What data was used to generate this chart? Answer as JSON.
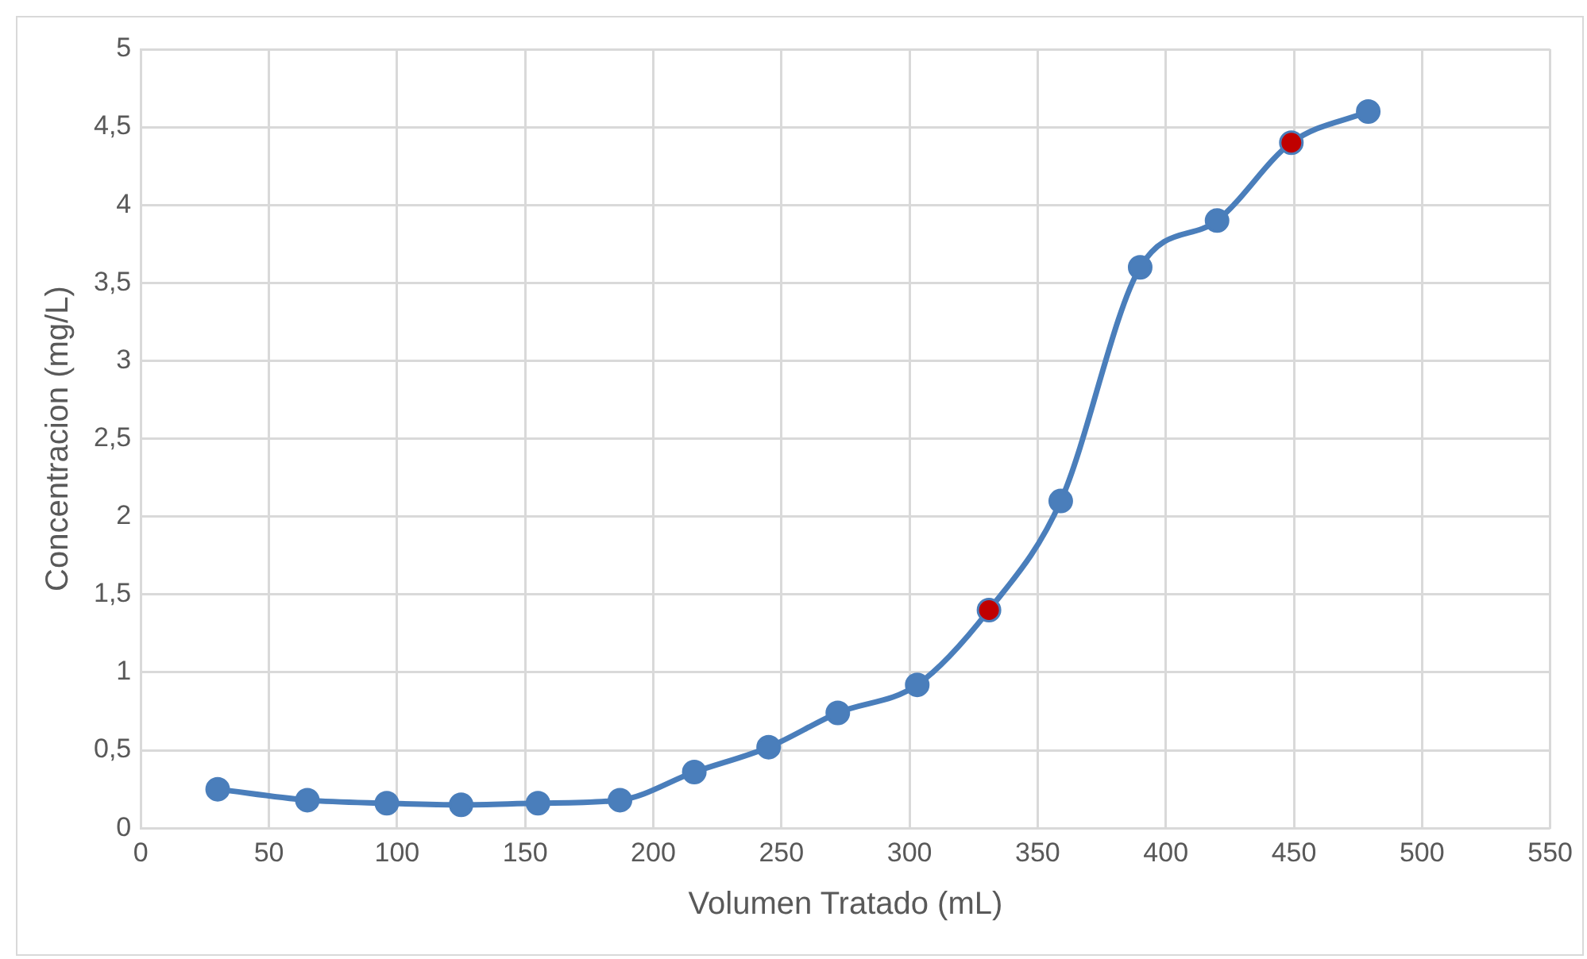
{
  "chart_data": {
    "type": "line",
    "xlabel": "Volumen Tratado (mL)",
    "ylabel": "Concentracion (mg/L)",
    "x": [
      30,
      65,
      96,
      125,
      155,
      187,
      216,
      245,
      272,
      303,
      331,
      359,
      390,
      420,
      449,
      479
    ],
    "series": [
      {
        "color": "#4a7ebb",
        "values": [
          0.25,
          0.18,
          0.16,
          0.15,
          0.16,
          0.18,
          0.36,
          0.52,
          0.74,
          0.92,
          1.4,
          2.1,
          3.6,
          3.9,
          4.4,
          4.6
        ],
        "colors": [
          "#4a7ebb",
          "#4a7ebb",
          "#4a7ebb",
          "#4a7ebb",
          "#4a7ebb",
          "#4a7ebb",
          "#4a7ebb",
          "#4a7ebb",
          "#4a7ebb",
          "#4a7ebb",
          "#c00000",
          "#4a7ebb",
          "#4a7ebb",
          "#4a7ebb",
          "#c00000",
          "#4a7ebb"
        ]
      }
    ],
    "xlim": [
      0,
      550
    ],
    "xticks": [
      0,
      50,
      100,
      150,
      200,
      250,
      300,
      350,
      400,
      450,
      500,
      550
    ],
    "ylim": [
      0,
      5
    ],
    "yticks": [
      0,
      {
        "value": 0.5,
        "label": "0,5"
      },
      1,
      {
        "value": 1.5,
        "label": "1,5"
      },
      2,
      {
        "value": 2.5,
        "label": "2,5"
      },
      3,
      {
        "value": 3.5,
        "label": "3,5"
      },
      4,
      {
        "value": 4.5,
        "label": "4,5"
      },
      5
    ],
    "grid": true,
    "marker": "circle",
    "line_style": "solid",
    "legend": false
  }
}
